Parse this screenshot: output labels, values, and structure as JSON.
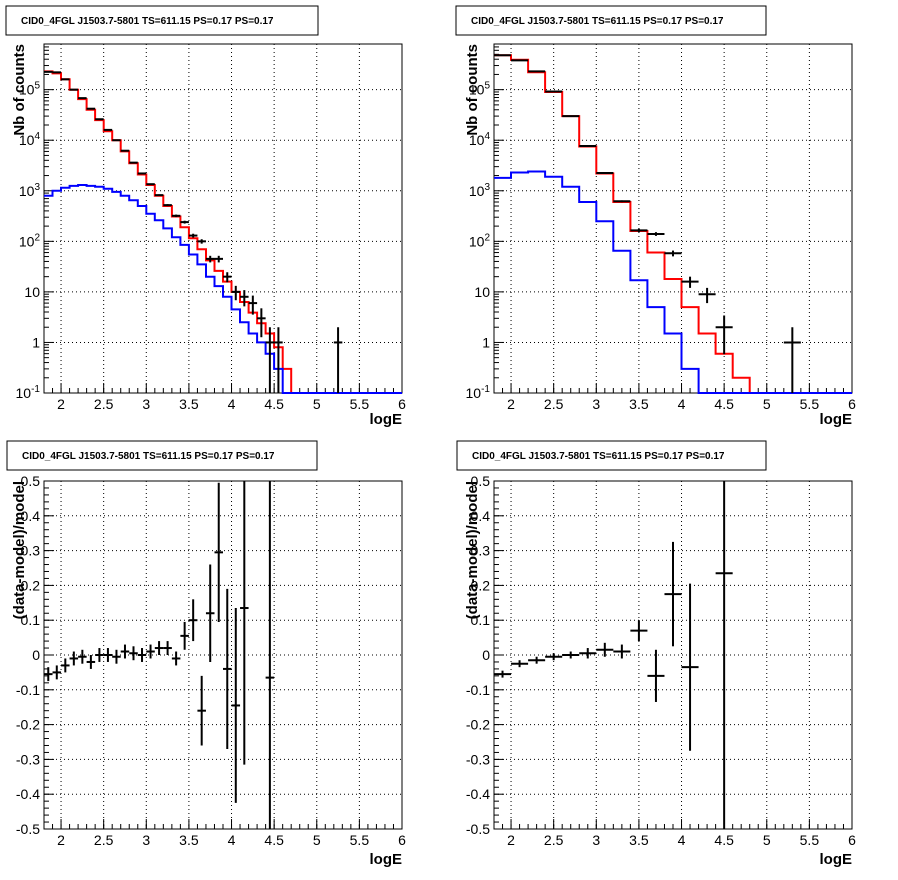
{
  "background": "#ffffff",
  "colors": {
    "data": "#000000",
    "total_model": "#ff0000",
    "component": "#0000ff",
    "grid": "#000000"
  },
  "chart_data": [
    {
      "type": "line",
      "title": "CID0_4FGL J1503.7-5801 TS=611.15 PS=0.17 PS=0.17",
      "xlabel": "logE",
      "ylabel": "Nb of counts",
      "xlim": [
        1.8,
        6.0
      ],
      "ylim": [
        0.1,
        800000
      ],
      "yscale": "log",
      "grid": true,
      "x_ticks": [
        "2",
        "2.5",
        "3",
        "3.5",
        "4",
        "4.5",
        "5",
        "5.5",
        "6"
      ],
      "y_ticks": [
        "10^-1",
        "1",
        "10",
        "10^2",
        "10^3",
        "10^4",
        "10^5"
      ],
      "bin_edges": [
        1.8,
        1.9,
        2.0,
        2.1,
        2.2,
        2.3,
        2.4,
        2.5,
        2.6,
        2.7,
        2.8,
        2.9,
        3.0,
        3.1,
        3.2,
        3.3,
        3.4,
        3.5,
        3.6,
        3.7,
        3.8,
        3.9,
        4.0,
        4.1,
        4.2,
        4.3,
        4.4,
        4.5,
        4.6,
        4.7,
        4.8,
        4.9,
        5.0,
        5.1,
        5.2,
        5.3,
        5.4,
        5.5,
        5.6,
        5.7,
        5.8,
        5.9,
        6.0
      ],
      "series": [
        {
          "role": "total_model",
          "color": "#ff0000",
          "values": [
            230000,
            210000,
            160000,
            100000,
            65000,
            40000,
            25000,
            15000,
            10000,
            6000,
            3500,
            2100,
            1300,
            800,
            500,
            310,
            190,
            115,
            70,
            42,
            26,
            16,
            10,
            6.3,
            3.9,
            2.4,
            1.5,
            0.8,
            0.3,
            0.1,
            0.1,
            0.1,
            0.1,
            0.1,
            0.1,
            0.1,
            0.1,
            0.1,
            0.1,
            0.1,
            0.1,
            0.1
          ]
        },
        {
          "role": "component",
          "color": "#0000ff",
          "values": [
            800,
            1000,
            1150,
            1250,
            1300,
            1250,
            1200,
            1100,
            950,
            800,
            650,
            500,
            350,
            260,
            180,
            120,
            85,
            55,
            35,
            20,
            13,
            8,
            4.5,
            2.5,
            1.5,
            1.0,
            0.6,
            0.3,
            0.1,
            0.1,
            0.1,
            0.1,
            0.1,
            0.1,
            0.1,
            0.1,
            0.1,
            0.1,
            0.1,
            0.1,
            0.1,
            0.1
          ]
        },
        {
          "role": "data",
          "color": "#000000",
          "errors": "sqrt",
          "x": [
            1.85,
            1.95,
            2.05,
            2.15,
            2.25,
            2.35,
            2.45,
            2.55,
            2.65,
            2.75,
            2.85,
            2.95,
            3.05,
            3.15,
            3.25,
            3.35,
            3.45,
            3.55,
            3.65,
            3.75,
            3.85,
            3.95,
            4.05,
            4.15,
            4.25,
            4.35,
            4.45,
            4.55,
            5.25
          ],
          "y": [
            225000,
            220000,
            160000,
            100000,
            68000,
            42000,
            26000,
            16000,
            10000,
            6200,
            3600,
            2200,
            1350,
            820,
            520,
            320,
            240,
            130,
            100,
            45,
            45,
            20,
            10,
            8,
            6,
            3,
            1,
            1,
            1
          ]
        }
      ]
    },
    {
      "type": "line",
      "title": "CID0_4FGL J1503.7-5801 TS=611.15 PS=0.17 PS=0.17",
      "xlabel": "logE",
      "ylabel": "Nb of counts",
      "xlim": [
        1.8,
        6.0
      ],
      "ylim": [
        0.1,
        800000
      ],
      "yscale": "log",
      "grid": true,
      "x_ticks": [
        "2",
        "2.5",
        "3",
        "3.5",
        "4",
        "4.5",
        "5",
        "5.5",
        "6"
      ],
      "y_ticks": [
        "10^-1",
        "1",
        "10",
        "10^2",
        "10^3",
        "10^4",
        "10^5"
      ],
      "bin_edges": [
        1.8,
        2.0,
        2.2,
        2.4,
        2.6,
        2.8,
        3.0,
        3.2,
        3.4,
        3.6,
        3.8,
        4.0,
        4.2,
        4.4,
        4.6,
        4.8,
        5.0,
        5.2,
        5.4,
        5.6,
        5.8,
        6.0
      ],
      "series": [
        {
          "role": "total_model",
          "color": "#ff0000",
          "values": [
            480000,
            390000,
            220000,
            90000,
            30000,
            7500,
            2200,
            600,
            160,
            60,
            18,
            5,
            1.5,
            0.6,
            0.2,
            0.1,
            0.1,
            0.1,
            0.1,
            0.1,
            0.1
          ]
        },
        {
          "role": "component",
          "color": "#0000ff",
          "values": [
            1800,
            2300,
            2400,
            1900,
            1200,
            600,
            250,
            65,
            17,
            5,
            1.5,
            0.3,
            0.1,
            0.1,
            0.1,
            0.1,
            0.1,
            0.1,
            0.1,
            0.1,
            0.1
          ]
        },
        {
          "role": "data",
          "color": "#000000",
          "errors": "sqrt",
          "x": [
            1.9,
            2.1,
            2.3,
            2.5,
            2.7,
            2.9,
            3.1,
            3.3,
            3.5,
            3.7,
            3.9,
            4.1,
            4.3,
            4.5,
            5.3
          ],
          "y": [
            480000,
            380000,
            230000,
            92000,
            30000,
            7700,
            2250,
            620,
            165,
            140,
            58,
            16,
            9,
            2,
            1
          ]
        }
      ]
    },
    {
      "type": "scatter",
      "title": "CID0_4FGL J1503.7-5801 TS=611.15 PS=0.17 PS=0.17",
      "xlabel": "logE",
      "ylabel": "(data-model)/model",
      "xlim": [
        1.8,
        6.0
      ],
      "ylim": [
        -0.5,
        0.5
      ],
      "grid": true,
      "x_ticks": [
        "2",
        "2.5",
        "3",
        "3.5",
        "4",
        "4.5",
        "5",
        "5.5",
        "6"
      ],
      "y_ticks": [
        "-0.5",
        "-0.4",
        "-0.3",
        "-0.2",
        "-0.1",
        "0",
        "0.1",
        "0.2",
        "0.3",
        "0.4",
        "0.5"
      ],
      "series": [
        {
          "role": "data",
          "color": "#000000",
          "x": [
            1.85,
            1.95,
            2.05,
            2.15,
            2.25,
            2.35,
            2.45,
            2.55,
            2.65,
            2.75,
            2.85,
            2.95,
            3.05,
            3.15,
            3.25,
            3.35,
            3.45,
            3.55,
            3.65,
            3.75,
            3.85,
            3.95,
            4.05,
            4.15,
            4.45
          ],
          "y": [
            -0.055,
            -0.05,
            -0.03,
            -0.01,
            -0.005,
            -0.02,
            0.0,
            0.0,
            -0.005,
            0.01,
            0.005,
            0.0,
            0.01,
            0.02,
            0.02,
            -0.01,
            0.055,
            0.1,
            -0.16,
            0.12,
            0.295,
            -0.04,
            -0.145,
            0.135,
            -0.065
          ],
          "yerr": [
            0.02,
            0.02,
            0.02,
            0.02,
            0.02,
            0.02,
            0.02,
            0.02,
            0.02,
            0.02,
            0.02,
            0.02,
            0.02,
            0.02,
            0.02,
            0.02,
            0.04,
            0.06,
            0.1,
            0.14,
            0.2,
            0.23,
            0.28,
            0.45,
            0.6
          ]
        }
      ]
    },
    {
      "type": "scatter",
      "title": "CID0_4FGL J1503.7-5801 TS=611.15 PS=0.17 PS=0.17",
      "xlabel": "logE",
      "ylabel": "(data-model)/model",
      "xlim": [
        1.8,
        6.0
      ],
      "ylim": [
        -0.5,
        0.5
      ],
      "grid": true,
      "x_ticks": [
        "2",
        "2.5",
        "3",
        "3.5",
        "4",
        "4.5",
        "5",
        "5.5",
        "6"
      ],
      "y_ticks": [
        "-0.5",
        "-0.4",
        "-0.3",
        "-0.2",
        "-0.1",
        "0",
        "0.1",
        "0.2",
        "0.3",
        "0.4",
        "0.5"
      ],
      "series": [
        {
          "role": "data",
          "color": "#000000",
          "x": [
            1.9,
            2.1,
            2.3,
            2.5,
            2.7,
            2.9,
            3.1,
            3.3,
            3.5,
            3.7,
            3.9,
            4.1,
            4.5
          ],
          "y": [
            -0.055,
            -0.025,
            -0.015,
            -0.005,
            0.0,
            0.005,
            0.015,
            0.01,
            0.07,
            -0.06,
            0.175,
            -0.035,
            0.235
          ],
          "yerr": [
            0.01,
            0.01,
            0.01,
            0.01,
            0.01,
            0.015,
            0.02,
            0.02,
            0.03,
            0.075,
            0.15,
            0.24,
            0.8
          ]
        }
      ]
    }
  ]
}
